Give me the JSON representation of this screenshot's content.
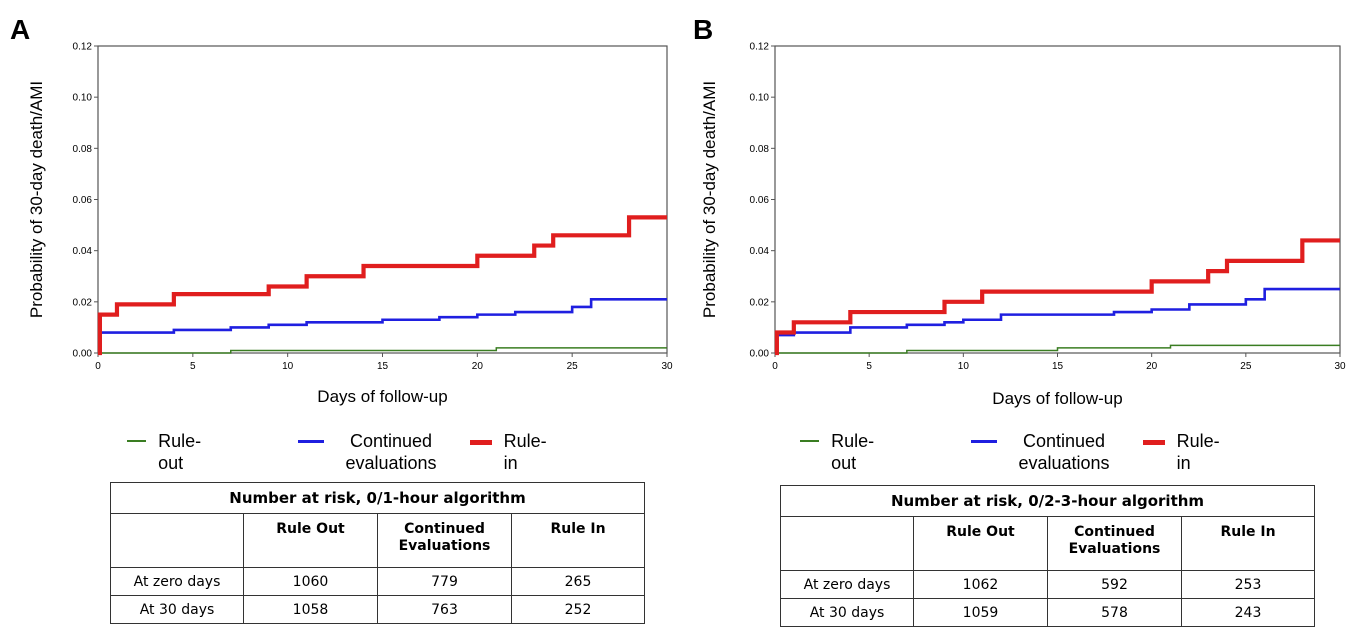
{
  "panels": [
    {
      "label": "A",
      "table": {
        "title": "Number at risk, 0/1-hour algorithm",
        "columns": [
          "",
          "Rule Out",
          "Continued Evaluations",
          "Rule In"
        ],
        "rows": [
          [
            "At zero days",
            "1060",
            "779",
            "265"
          ],
          [
            "At 30 days",
            "1058",
            "763",
            "252"
          ]
        ]
      }
    },
    {
      "label": "B",
      "table": {
        "title": "Number at risk, 0/2-3-hour algorithm",
        "columns": [
          "",
          "Rule Out",
          "Continued Evaluations",
          "Rule In"
        ],
        "rows": [
          [
            "At zero days",
            "1062",
            "592",
            "253"
          ],
          [
            "At 30 days",
            "1059",
            "578",
            "243"
          ]
        ]
      }
    }
  ],
  "legend": [
    {
      "name": "Rule-out",
      "color": "#3a7d22"
    },
    {
      "name": "Continued evaluations",
      "color": "#1f1fe0"
    },
    {
      "name": "Rule-in",
      "color": "#e01e1e"
    }
  ],
  "chart_data": [
    {
      "type": "line",
      "step": true,
      "xlabel": "Days of follow-up",
      "ylabel": "Probability of 30-day death/AMI",
      "xlim": [
        0,
        30
      ],
      "ylim": [
        0,
        0.12
      ],
      "xticks": [
        0,
        5,
        10,
        15,
        20,
        25,
        30
      ],
      "yticks": [
        "0.00",
        "0.02",
        "0.04",
        "0.06",
        "0.08",
        "0.10",
        "0.12"
      ],
      "legend_position": "bottom",
      "series": [
        {
          "name": "Rule-out",
          "color": "#3a7d22",
          "x": [
            0,
            7,
            21,
            30
          ],
          "y": [
            0.0,
            0.001,
            0.002,
            0.002
          ]
        },
        {
          "name": "Continued evaluations",
          "color": "#1f1fe0",
          "x": [
            0,
            0.1,
            4,
            7,
            9,
            11,
            15,
            18,
            20,
            22,
            25,
            26,
            30
          ],
          "y": [
            0.0,
            0.008,
            0.009,
            0.01,
            0.011,
            0.012,
            0.013,
            0.014,
            0.015,
            0.016,
            0.018,
            0.021,
            0.021
          ]
        },
        {
          "name": "Rule-in",
          "color": "#e01e1e",
          "x": [
            0,
            0.1,
            1,
            4,
            9,
            11,
            14,
            20,
            23,
            24,
            28,
            30
          ],
          "y": [
            0.0,
            0.015,
            0.019,
            0.023,
            0.026,
            0.03,
            0.034,
            0.038,
            0.042,
            0.046,
            0.053,
            0.053
          ]
        }
      ]
    },
    {
      "type": "line",
      "step": true,
      "xlabel": "Days of follow-up",
      "ylabel": "Probability of 30-day death/AMI",
      "xlim": [
        0,
        30
      ],
      "ylim": [
        0,
        0.12
      ],
      "xticks": [
        0,
        5,
        10,
        15,
        20,
        25,
        30
      ],
      "yticks": [
        "0.00",
        "0.02",
        "0.04",
        "0.06",
        "0.08",
        "0.10",
        "0.12"
      ],
      "legend_position": "bottom",
      "series": [
        {
          "name": "Rule-out",
          "color": "#3a7d22",
          "x": [
            0,
            7,
            15,
            21,
            30
          ],
          "y": [
            0.0,
            0.001,
            0.002,
            0.003,
            0.003
          ]
        },
        {
          "name": "Continued evaluations",
          "color": "#1f1fe0",
          "x": [
            0,
            0.1,
            1,
            4,
            7,
            9,
            10,
            12,
            18,
            20,
            22,
            25,
            26,
            30
          ],
          "y": [
            0.0,
            0.007,
            0.008,
            0.01,
            0.011,
            0.012,
            0.013,
            0.015,
            0.016,
            0.017,
            0.019,
            0.021,
            0.025,
            0.025
          ]
        },
        {
          "name": "Rule-in",
          "color": "#e01e1e",
          "x": [
            0,
            0.1,
            1,
            4,
            9,
            11,
            20,
            23,
            24,
            28,
            30
          ],
          "y": [
            0.0,
            0.008,
            0.012,
            0.016,
            0.02,
            0.024,
            0.028,
            0.032,
            0.036,
            0.044,
            0.044
          ]
        }
      ]
    }
  ]
}
